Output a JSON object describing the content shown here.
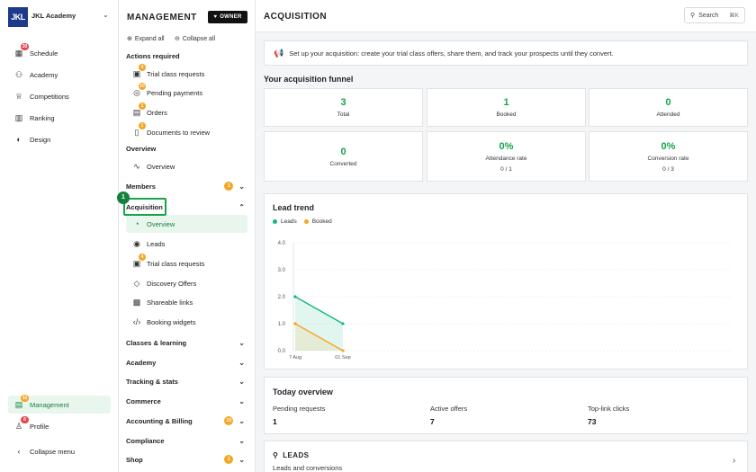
{
  "app": {
    "logo_text": "JKL",
    "org_name": "JKL Academy",
    "accent": "#16a34a",
    "nav": [
      {
        "label": "Schedule",
        "icon": "calendar-icon",
        "badge": "30"
      },
      {
        "label": "Academy",
        "icon": "users-icon",
        "badge": null
      },
      {
        "label": "Competitions",
        "icon": "trophy-icon",
        "badge": null
      },
      {
        "label": "Ranking",
        "icon": "ranking-icon",
        "badge": null
      },
      {
        "label": "Design",
        "icon": "palette-icon",
        "badge": null
      }
    ],
    "bottom_nav": [
      {
        "label": "Management",
        "icon": "management-icon",
        "badge": "32",
        "active": true
      },
      {
        "label": "Profile",
        "icon": "profile-icon",
        "badge": "8",
        "active": false
      }
    ],
    "collapse_label": "Collapse menu"
  },
  "management": {
    "title": "MANAGEMENT",
    "owner_badge": "OWNER",
    "expand_all": "Expand all",
    "collapse_all": "Collapse all",
    "actions_heading": "Actions required",
    "actions": [
      {
        "label": "Trial class requests",
        "badge": "4"
      },
      {
        "label": "Pending payments",
        "badge": "10"
      },
      {
        "label": "Orders",
        "badge": "1"
      },
      {
        "label": "Documents to review",
        "badge": "1"
      }
    ],
    "overview_heading": "Overview",
    "overview_item": "Overview",
    "members_label": "Members",
    "members_count": "1",
    "acquisition_label": "Acquisition",
    "step_number": "1",
    "acquisition_items": [
      {
        "label": "Overview",
        "active": true,
        "badge": null
      },
      {
        "label": "Leads",
        "active": false,
        "badge": null
      },
      {
        "label": "Trial class requests",
        "active": false,
        "badge": "4"
      },
      {
        "label": "Discovery Offers",
        "active": false,
        "badge": null
      },
      {
        "label": "Shareable links",
        "active": false,
        "badge": null
      },
      {
        "label": "Booking widgets",
        "active": false,
        "badge": null
      }
    ],
    "sections": [
      {
        "label": "Classes & learning",
        "count": null
      },
      {
        "label": "Academy",
        "count": null
      },
      {
        "label": "Tracking & stats",
        "count": null
      },
      {
        "label": "Commerce",
        "count": null
      },
      {
        "label": "Accounting & Billing",
        "count": "10"
      },
      {
        "label": "Compliance",
        "count": null
      },
      {
        "label": "Shop",
        "count": "1"
      }
    ]
  },
  "main": {
    "title": "ACQUISITION",
    "search_label": "Search",
    "search_shortcut": "⌘K",
    "banner_text": "Set up your acquisition: create your trial class offers, share them, and track your prospects until they convert.",
    "funnel_title": "Your acquisition funnel",
    "funnel": [
      {
        "value": "3",
        "label": "Total",
        "sub": ""
      },
      {
        "value": "1",
        "label": "Booked",
        "sub": ""
      },
      {
        "value": "0",
        "label": "Attended",
        "sub": ""
      },
      {
        "value": "0",
        "label": "Converted",
        "sub": ""
      },
      {
        "value": "0%",
        "label": "Attendance rate",
        "sub": "0 / 1"
      },
      {
        "value": "0%",
        "label": "Conversion rate",
        "sub": "0 / 3"
      }
    ],
    "today": {
      "title": "Today overview",
      "items": [
        {
          "label": "Pending requests",
          "value": "1"
        },
        {
          "label": "Active offers",
          "value": "7"
        },
        {
          "label": "Top-link clicks",
          "value": "73"
        }
      ]
    },
    "leads_card": {
      "title": "LEADS",
      "subtitle": "Leads and conversions"
    }
  },
  "chart_data": {
    "type": "area",
    "title": "Lead trend",
    "x": [
      "7 Aug",
      "01 Sep"
    ],
    "yticks": [
      "4.0",
      "3.0",
      "2.0",
      "1.0",
      "0.0"
    ],
    "ylim": [
      0,
      4
    ],
    "series": [
      {
        "name": "Leads",
        "color": "#10b981",
        "values": [
          2,
          1
        ]
      },
      {
        "name": "Booked",
        "color": "#f5a623",
        "values": [
          1,
          0
        ]
      }
    ],
    "grid": true,
    "legend": "top-left"
  }
}
